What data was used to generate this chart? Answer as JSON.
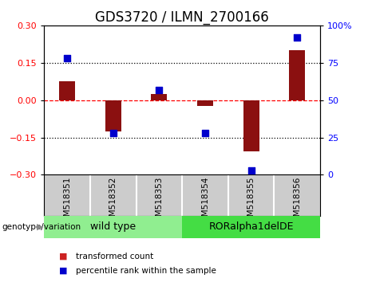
{
  "title": "GDS3720 / ILMN_2700166",
  "samples": [
    "GSM518351",
    "GSM518352",
    "GSM518353",
    "GSM518354",
    "GSM518355",
    "GSM518356"
  ],
  "transformed_counts": [
    0.075,
    -0.125,
    0.025,
    -0.025,
    -0.205,
    0.2
  ],
  "percentile_ranks": [
    78,
    28,
    57,
    28,
    3,
    92
  ],
  "groups": [
    {
      "label": "wild type",
      "indices": [
        0,
        1,
        2
      ],
      "color": "#90EE90"
    },
    {
      "label": "RORalpha1delDE",
      "indices": [
        3,
        4,
        5
      ],
      "color": "#44DD44"
    }
  ],
  "left_ylim": [
    -0.3,
    0.3
  ],
  "right_ylim": [
    0,
    100
  ],
  "left_yticks": [
    -0.3,
    -0.15,
    0,
    0.15,
    0.3
  ],
  "right_yticks": [
    0,
    25,
    50,
    75,
    100
  ],
  "right_yticklabels": [
    "0",
    "25",
    "50",
    "75",
    "100%"
  ],
  "hlines": [
    0.15,
    0.0,
    -0.15
  ],
  "hline_styles": [
    "dotted",
    "dashed",
    "dotted"
  ],
  "hline_colors": [
    "black",
    "red",
    "black"
  ],
  "bar_color": "#8B1010",
  "dot_color": "#0000CC",
  "bar_width": 0.35,
  "dot_size": 40,
  "legend_items": [
    "transformed count",
    "percentile rank within the sample"
  ],
  "legend_colors": [
    "#CC2222",
    "#0000CC"
  ],
  "genotype_label": "genotype/variation",
  "background_color": "#ffffff",
  "plot_bg_color": "#ffffff",
  "sample_bg_color": "#cccccc",
  "title_fontsize": 12,
  "tick_fontsize": 8,
  "label_fontsize": 8,
  "sample_fontsize": 7.5,
  "group_fontsize": 9
}
